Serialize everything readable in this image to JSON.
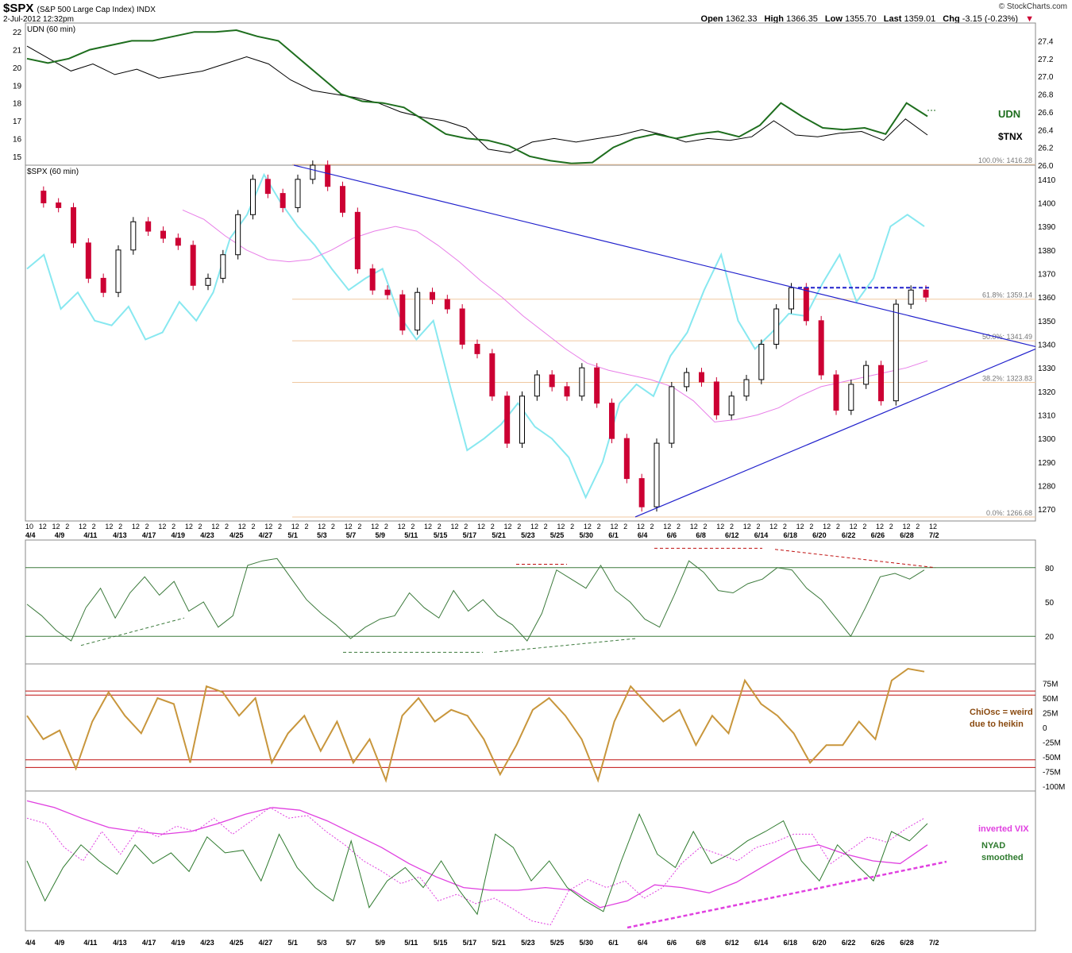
{
  "header": {
    "symbol": "$SPX",
    "name": "(S&P 500 Large Cap Index) INDX",
    "date": "2-Jul-2012 12:32pm",
    "credit": "© StockCharts.com",
    "open_label": "Open",
    "open": "1362.33",
    "high_label": "High",
    "high": "1366.35",
    "low_label": "Low",
    "low": "1355.70",
    "last_label": "Last",
    "last": "1359.01",
    "chg_label": "Chg",
    "chg": "-3.15 (-0.23%)"
  },
  "x_axis": {
    "hour_labels": [
      "10",
      "12",
      "12",
      "2",
      "12",
      "2",
      "12",
      "2",
      "12",
      "2",
      "12",
      "2",
      "12",
      "2",
      "12",
      "2",
      "12",
      "2",
      "12",
      "2",
      "12",
      "2",
      "12",
      "2",
      "12",
      "2",
      "12",
      "2",
      "12",
      "2",
      "12",
      "2",
      "12",
      "2",
      "12",
      "2",
      "12",
      "2",
      "12",
      "2",
      "12",
      "2",
      "12",
      "2",
      "12",
      "2",
      "12",
      "2",
      "12",
      "2",
      "12",
      "2",
      "12",
      "2",
      "12",
      "2",
      "12",
      "2",
      "12",
      "2",
      "12",
      "2",
      "12",
      "2",
      "12",
      "2",
      "12",
      "2",
      "12"
    ],
    "date_labels": [
      "4/4",
      "4/9",
      "4/11",
      "4/13",
      "4/17",
      "4/19",
      "4/23",
      "4/25",
      "4/27",
      "5/1",
      "5/3",
      "5/7",
      "5/9",
      "5/11",
      "5/15",
      "5/17",
      "5/21",
      "5/23",
      "5/25",
      "5/30",
      "6/1",
      "6/4",
      "6/6",
      "6/8",
      "6/12",
      "6/14",
      "6/18",
      "6/20",
      "6/22",
      "6/26",
      "6/28",
      "7/2"
    ]
  },
  "chart_data": [
    {
      "panel": "udn_tnx",
      "type": "line",
      "title": "UDN (60 min)",
      "left_ticks": [
        "22",
        "21",
        "20",
        "19",
        "18",
        "17",
        "16",
        "15"
      ],
      "right_ticks": [
        "27.4",
        "27.2",
        "27.0",
        "26.8",
        "26.6",
        "26.4",
        "26.2",
        "26.0"
      ],
      "left_range": [
        14.5,
        22.5
      ],
      "right_range": [
        26.0,
        27.6
      ],
      "series": [
        {
          "name": "UDN",
          "color": "#1e6e1e",
          "axis": "right",
          "values": [
            27.2,
            27.15,
            27.2,
            27.3,
            27.35,
            27.4,
            27.4,
            27.45,
            27.5,
            27.5,
            27.52,
            27.45,
            27.4,
            27.2,
            27.0,
            26.8,
            26.72,
            26.7,
            26.65,
            26.5,
            26.35,
            26.3,
            26.28,
            26.22,
            26.1,
            26.05,
            26.02,
            26.03,
            26.2,
            26.3,
            26.35,
            26.3,
            26.35,
            26.38,
            26.32,
            26.45,
            26.7,
            26.55,
            26.42,
            26.4,
            26.42,
            26.35,
            26.7,
            26.55
          ]
        },
        {
          "name": "$TNX",
          "color": "#000000",
          "axis": "left",
          "values": [
            21.2,
            20.5,
            19.8,
            20.2,
            19.6,
            19.9,
            19.4,
            19.6,
            19.8,
            20.2,
            20.6,
            20.2,
            19.3,
            18.7,
            18.5,
            18.3,
            18.0,
            17.5,
            17.2,
            17.0,
            16.6,
            15.4,
            15.2,
            15.8,
            16.0,
            15.8,
            16.0,
            16.2,
            16.5,
            16.2,
            15.8,
            16.0,
            15.9,
            16.1,
            17.0,
            16.2,
            16.1,
            16.3,
            16.4,
            15.9,
            17.1,
            16.2
          ]
        }
      ]
    },
    {
      "panel": "price",
      "type": "line",
      "title": "$SPX (60 min)",
      "ylim": [
        1265,
        1416
      ],
      "y_ticks": [
        "1410",
        "1400",
        "1390",
        "1380",
        "1370",
        "1360",
        "1350",
        "1340",
        "1330",
        "1320",
        "1310",
        "1300",
        "1290",
        "1280",
        "1270"
      ],
      "fib_levels": [
        {
          "label": "100.0%: 1416.28",
          "value": 1416.28
        },
        {
          "label": "61.8%: 1359.14",
          "value": 1359.14
        },
        {
          "label": "50.0%: 1341.49",
          "value": 1341.49
        },
        {
          "label": "38.2%: 1323.83",
          "value": 1323.83
        },
        {
          "label": "0.0%: 1266.68",
          "value": 1266.68
        }
      ],
      "series": [
        {
          "name": "Heikin-Ashi candles",
          "color": "#cc0033",
          "values": [
            1405,
            1400,
            1398,
            1383,
            1368,
            1362,
            1380,
            1392,
            1388,
            1385,
            1382,
            1365,
            1368,
            1378,
            1395,
            1410,
            1404,
            1398,
            1410,
            1416,
            1407,
            1396,
            1372,
            1363,
            1361,
            1346,
            1362,
            1359,
            1355,
            1340,
            1336,
            1318,
            1298,
            1318,
            1327,
            1322,
            1318,
            1330,
            1315,
            1300,
            1283,
            1271,
            1298,
            1322,
            1328,
            1324,
            1310,
            1318,
            1325,
            1340,
            1355,
            1364,
            1350,
            1327,
            1312,
            1323,
            1331,
            1316,
            1357,
            1363,
            1360
          ]
        },
        {
          "name": "fast line",
          "color": "#88e8f0",
          "values": [
            1372,
            1378,
            1355,
            1362,
            1350,
            1348,
            1356,
            1342,
            1345,
            1358,
            1350,
            1362,
            1385,
            1395,
            1412,
            1400,
            1390,
            1382,
            1372,
            1363,
            1368,
            1372,
            1352,
            1342,
            1350,
            1322,
            1295,
            1300,
            1306,
            1315,
            1305,
            1300,
            1292,
            1275,
            1290,
            1315,
            1323,
            1318,
            1335,
            1345,
            1363,
            1378,
            1350,
            1338,
            1345,
            1353,
            1352,
            1366,
            1378,
            1358,
            1368,
            1390,
            1395,
            1390
          ]
        },
        {
          "name": "moving average",
          "color": "#e87ee8",
          "values": [
            1397,
            1393,
            1386,
            1380,
            1376,
            1375,
            1376,
            1380,
            1385,
            1388,
            1390,
            1388,
            1382,
            1375,
            1367,
            1360,
            1352,
            1345,
            1338,
            1332,
            1329,
            1327,
            1325,
            1322,
            1316,
            1307,
            1308,
            1310,
            1313,
            1318,
            1322,
            1324,
            1326,
            1328,
            1330,
            1333
          ]
        }
      ]
    },
    {
      "panel": "oscillator_1",
      "type": "line",
      "y_ticks": [
        "80",
        "50",
        "20"
      ],
      "ylim": [
        0,
        100
      ],
      "series": [
        {
          "name": "oscillator",
          "color": "#3c7a3c",
          "values": [
            48,
            38,
            25,
            16,
            45,
            62,
            36,
            58,
            72,
            56,
            68,
            42,
            50,
            28,
            38,
            82,
            86,
            88,
            70,
            52,
            40,
            30,
            18,
            28,
            35,
            38,
            58,
            45,
            36,
            60,
            42,
            52,
            38,
            30,
            16,
            40,
            78,
            70,
            62,
            82,
            60,
            50,
            35,
            28,
            56,
            86,
            76,
            60,
            58,
            66,
            70,
            80,
            78,
            62,
            52,
            36,
            20,
            45,
            72,
            75,
            70,
            78
          ]
        }
      ]
    },
    {
      "panel": "chiosc",
      "type": "line",
      "y_ticks": [
        "75M",
        "50M",
        "25M",
        "0",
        "-25M",
        "-50M",
        "-75M",
        "-100M"
      ],
      "ylim": [
        -100,
        100
      ],
      "series": [
        {
          "name": "ChiOsc",
          "color": "#c8963c",
          "values": [
            20,
            -20,
            -5,
            -70,
            10,
            60,
            20,
            -10,
            50,
            40,
            -60,
            70,
            60,
            20,
            50,
            -60,
            -10,
            20,
            -40,
            10,
            -60,
            -20,
            -90,
            20,
            50,
            10,
            30,
            20,
            -20,
            -80,
            -30,
            30,
            50,
            20,
            -20,
            -90,
            10,
            70,
            40,
            10,
            30,
            -30,
            20,
            -10,
            80,
            40,
            20,
            -10,
            -60,
            -30,
            -30,
            10,
            -20,
            80,
            120,
            95
          ]
        }
      ]
    },
    {
      "panel": "breadth",
      "type": "line",
      "series": [
        {
          "name": "inverted VIX",
          "color": "#e040e0",
          "values": [
            0.82,
            0.78,
            0.6,
            0.5,
            0.72,
            0.55,
            0.75,
            0.68,
            0.76,
            0.72,
            0.82,
            0.7,
            0.8,
            0.9,
            0.82,
            0.84,
            0.72,
            0.62,
            0.5,
            0.42,
            0.33,
            0.38,
            0.2,
            0.25,
            0.18,
            0.22,
            0.14,
            0.05,
            0.02,
            0.28,
            0.36,
            0.3,
            0.35,
            0.22,
            0.3,
            0.48,
            0.6,
            0.55,
            0.5,
            0.6,
            0.64,
            0.7,
            0.7,
            0.48,
            0.58,
            0.68,
            0.64,
            0.74,
            0.82
          ]
        },
        {
          "name": "NYAD smoothed",
          "color": "#2e7a2e",
          "values": [
            0.5,
            0.2,
            0.45,
            0.62,
            0.5,
            0.4,
            0.62,
            0.48,
            0.56,
            0.42,
            0.68,
            0.56,
            0.58,
            0.35,
            0.7,
            0.45,
            0.3,
            0.2,
            0.65,
            0.15,
            0.35,
            0.45,
            0.3,
            0.5,
            0.28,
            0.1,
            0.7,
            0.6,
            0.35,
            0.5,
            0.3,
            0.2,
            0.12,
            0.5,
            0.85,
            0.55,
            0.45,
            0.72,
            0.48,
            0.55,
            0.65,
            0.72,
            0.8,
            0.5,
            0.35,
            0.62,
            0.48,
            0.35,
            0.72,
            0.65,
            0.78
          ]
        },
        {
          "name": "smoothed VIX",
          "color": "#e040e0",
          "values": [
            0.95,
            0.9,
            0.82,
            0.75,
            0.72,
            0.7,
            0.72,
            0.78,
            0.85,
            0.9,
            0.88,
            0.8,
            0.7,
            0.6,
            0.48,
            0.38,
            0.3,
            0.28,
            0.28,
            0.3,
            0.28,
            0.15,
            0.2,
            0.32,
            0.3,
            0.26,
            0.34,
            0.46,
            0.58,
            0.62,
            0.55,
            0.5,
            0.48,
            0.62
          ]
        }
      ]
    }
  ],
  "annotations": {
    "udn_label": "UDN",
    "tnx_label": "$TNX",
    "chiosc_line1": "ChiOsc = weird",
    "chiosc_line2": "due to heikin",
    "vix_label": "inverted VIX",
    "nyad_line1": "NYAD",
    "nyad_line2": "smoothed"
  },
  "colors": {
    "udn": "#1e6e1e",
    "tnx": "#000000",
    "candle_down": "#cc0033",
    "candle_up": "#000000",
    "cyan": "#88e8f0",
    "ma": "#e87ee8",
    "fib": "#f0c8a0",
    "trend": "#2020cc",
    "osc": "#3c7a3c",
    "chiosc": "#c8963c",
    "bands": "#c01010",
    "vix": "#e040e0",
    "nyad": "#2e7a2e"
  }
}
